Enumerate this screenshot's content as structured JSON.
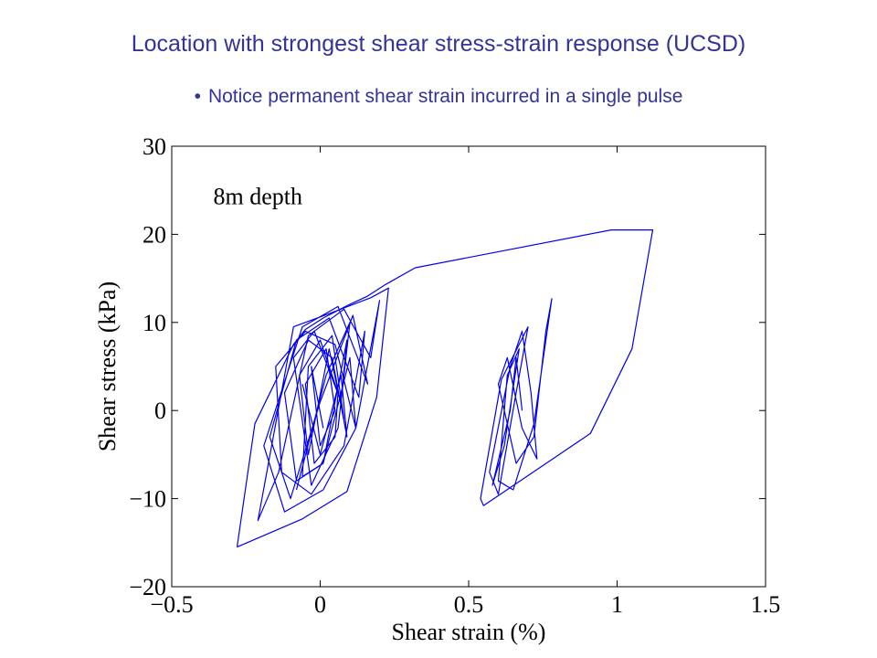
{
  "slide": {
    "title": "Location with strongest shear stress-strain response (UCSD)",
    "bullet": "Notice permanent shear strain incurred in a single pulse"
  },
  "chart_data": {
    "type": "line",
    "xlabel": "Shear strain (%)",
    "ylabel": "Shear stress (kPa)",
    "annotation": "8m depth",
    "xlim": [
      -0.5,
      1.5
    ],
    "ylim": [
      -20,
      30
    ],
    "xticks": [
      -0.5,
      0,
      0.5,
      1,
      1.5
    ],
    "xtick_labels": [
      "−0.5",
      "0",
      "0.5",
      "1",
      "1.5"
    ],
    "yticks": [
      -20,
      -10,
      0,
      10,
      20,
      30
    ],
    "ytick_labels": [
      "−20",
      "−10",
      "0",
      "10",
      "20",
      "30"
    ],
    "grid": false,
    "line_color": "#0000ee",
    "series": [
      {
        "x": [
          -0.28,
          -0.22,
          -0.09,
          -0.05,
          0.01,
          0.09,
          0.16,
          0.22,
          0.32,
          0.98,
          1.12,
          1.05,
          0.91,
          0.55,
          0.54,
          0.61,
          0.7,
          0.66,
          0.6,
          0.57,
          0.64,
          0.68,
          0.71,
          0.73,
          0.68,
          0.63,
          0.6,
          0.66,
          0.72,
          0.76,
          0.78,
          0.72,
          0.65,
          0.6,
          0.63,
          0.67,
          0.62,
          0.58,
          0.64,
          0.66,
          0.68
        ],
        "y": [
          -15.5,
          -1.5,
          7.5,
          9.2,
          10.5,
          11.9,
          13.0,
          14.3,
          16.2,
          20.5,
          20.5,
          7.0,
          -2.6,
          -10.8,
          -10.0,
          3.5,
          9.5,
          2.0,
          -9.5,
          -7.0,
          5.0,
          9.0,
          2.0,
          -5.5,
          -2.0,
          6.0,
          3.0,
          -6.0,
          -3.0,
          9.0,
          12.7,
          -1.5,
          -9.0,
          -8.0,
          4.0,
          7.0,
          -4.0,
          -8.5,
          0.0,
          6.0,
          0.0
        ]
      },
      {
        "x": [
          -0.28,
          -0.06,
          0.09,
          0.19,
          0.23,
          0.17,
          0.03,
          -0.09,
          -0.21,
          -0.14,
          -0.04,
          0.08,
          0.17,
          0.2,
          0.12,
          0.01,
          -0.12,
          -0.19,
          -0.06,
          0.06,
          0.16,
          0.11,
          0.0,
          -0.1,
          -0.17,
          -0.08,
          0.03,
          0.13,
          0.15,
          0.08,
          -0.03,
          -0.13,
          -0.15,
          -0.05,
          0.05,
          0.12,
          0.1,
          0.01,
          -0.08,
          -0.12,
          -0.04,
          0.04,
          0.09,
          0.07,
          0.0,
          -0.06
        ],
        "y": [
          -15.5,
          -12.3,
          -9.2,
          1.5,
          13.9,
          12.8,
          11.0,
          9.5,
          -12.5,
          -7.0,
          8.5,
          11.5,
          6.0,
          12.5,
          -2.0,
          -9.0,
          -11.5,
          -4.0,
          9.5,
          11.8,
          3.0,
          10.8,
          1.0,
          -10.0,
          -3.0,
          8.0,
          10.5,
          1.5,
          9.0,
          -4.0,
          -9.5,
          -7.0,
          5.0,
          9.0,
          7.5,
          -2.0,
          6.0,
          -6.0,
          -8.0,
          2.0,
          8.0,
          6.0,
          -3.0,
          4.0,
          -5.0,
          3.0
        ]
      },
      {
        "x": [
          -0.08,
          0.02,
          0.1,
          0.06,
          -0.03,
          -0.09,
          -0.02,
          0.07,
          0.09,
          0.01,
          -0.06,
          -0.04,
          0.04,
          0.08,
          0.03,
          -0.04,
          -0.07,
          0.0,
          0.06,
          0.05,
          -0.02,
          -0.05,
          0.02,
          0.05,
          0.0,
          -0.03,
          0.01
        ],
        "y": [
          -9.0,
          4.0,
          10.0,
          -2.0,
          -8.5,
          6.0,
          9.0,
          1.0,
          8.0,
          -6.0,
          -7.5,
          5.0,
          8.5,
          -1.0,
          7.0,
          -5.0,
          4.0,
          8.0,
          2.0,
          -3.0,
          -6.0,
          3.0,
          7.0,
          0.0,
          -4.0,
          5.0,
          -2.0
        ]
      }
    ]
  }
}
